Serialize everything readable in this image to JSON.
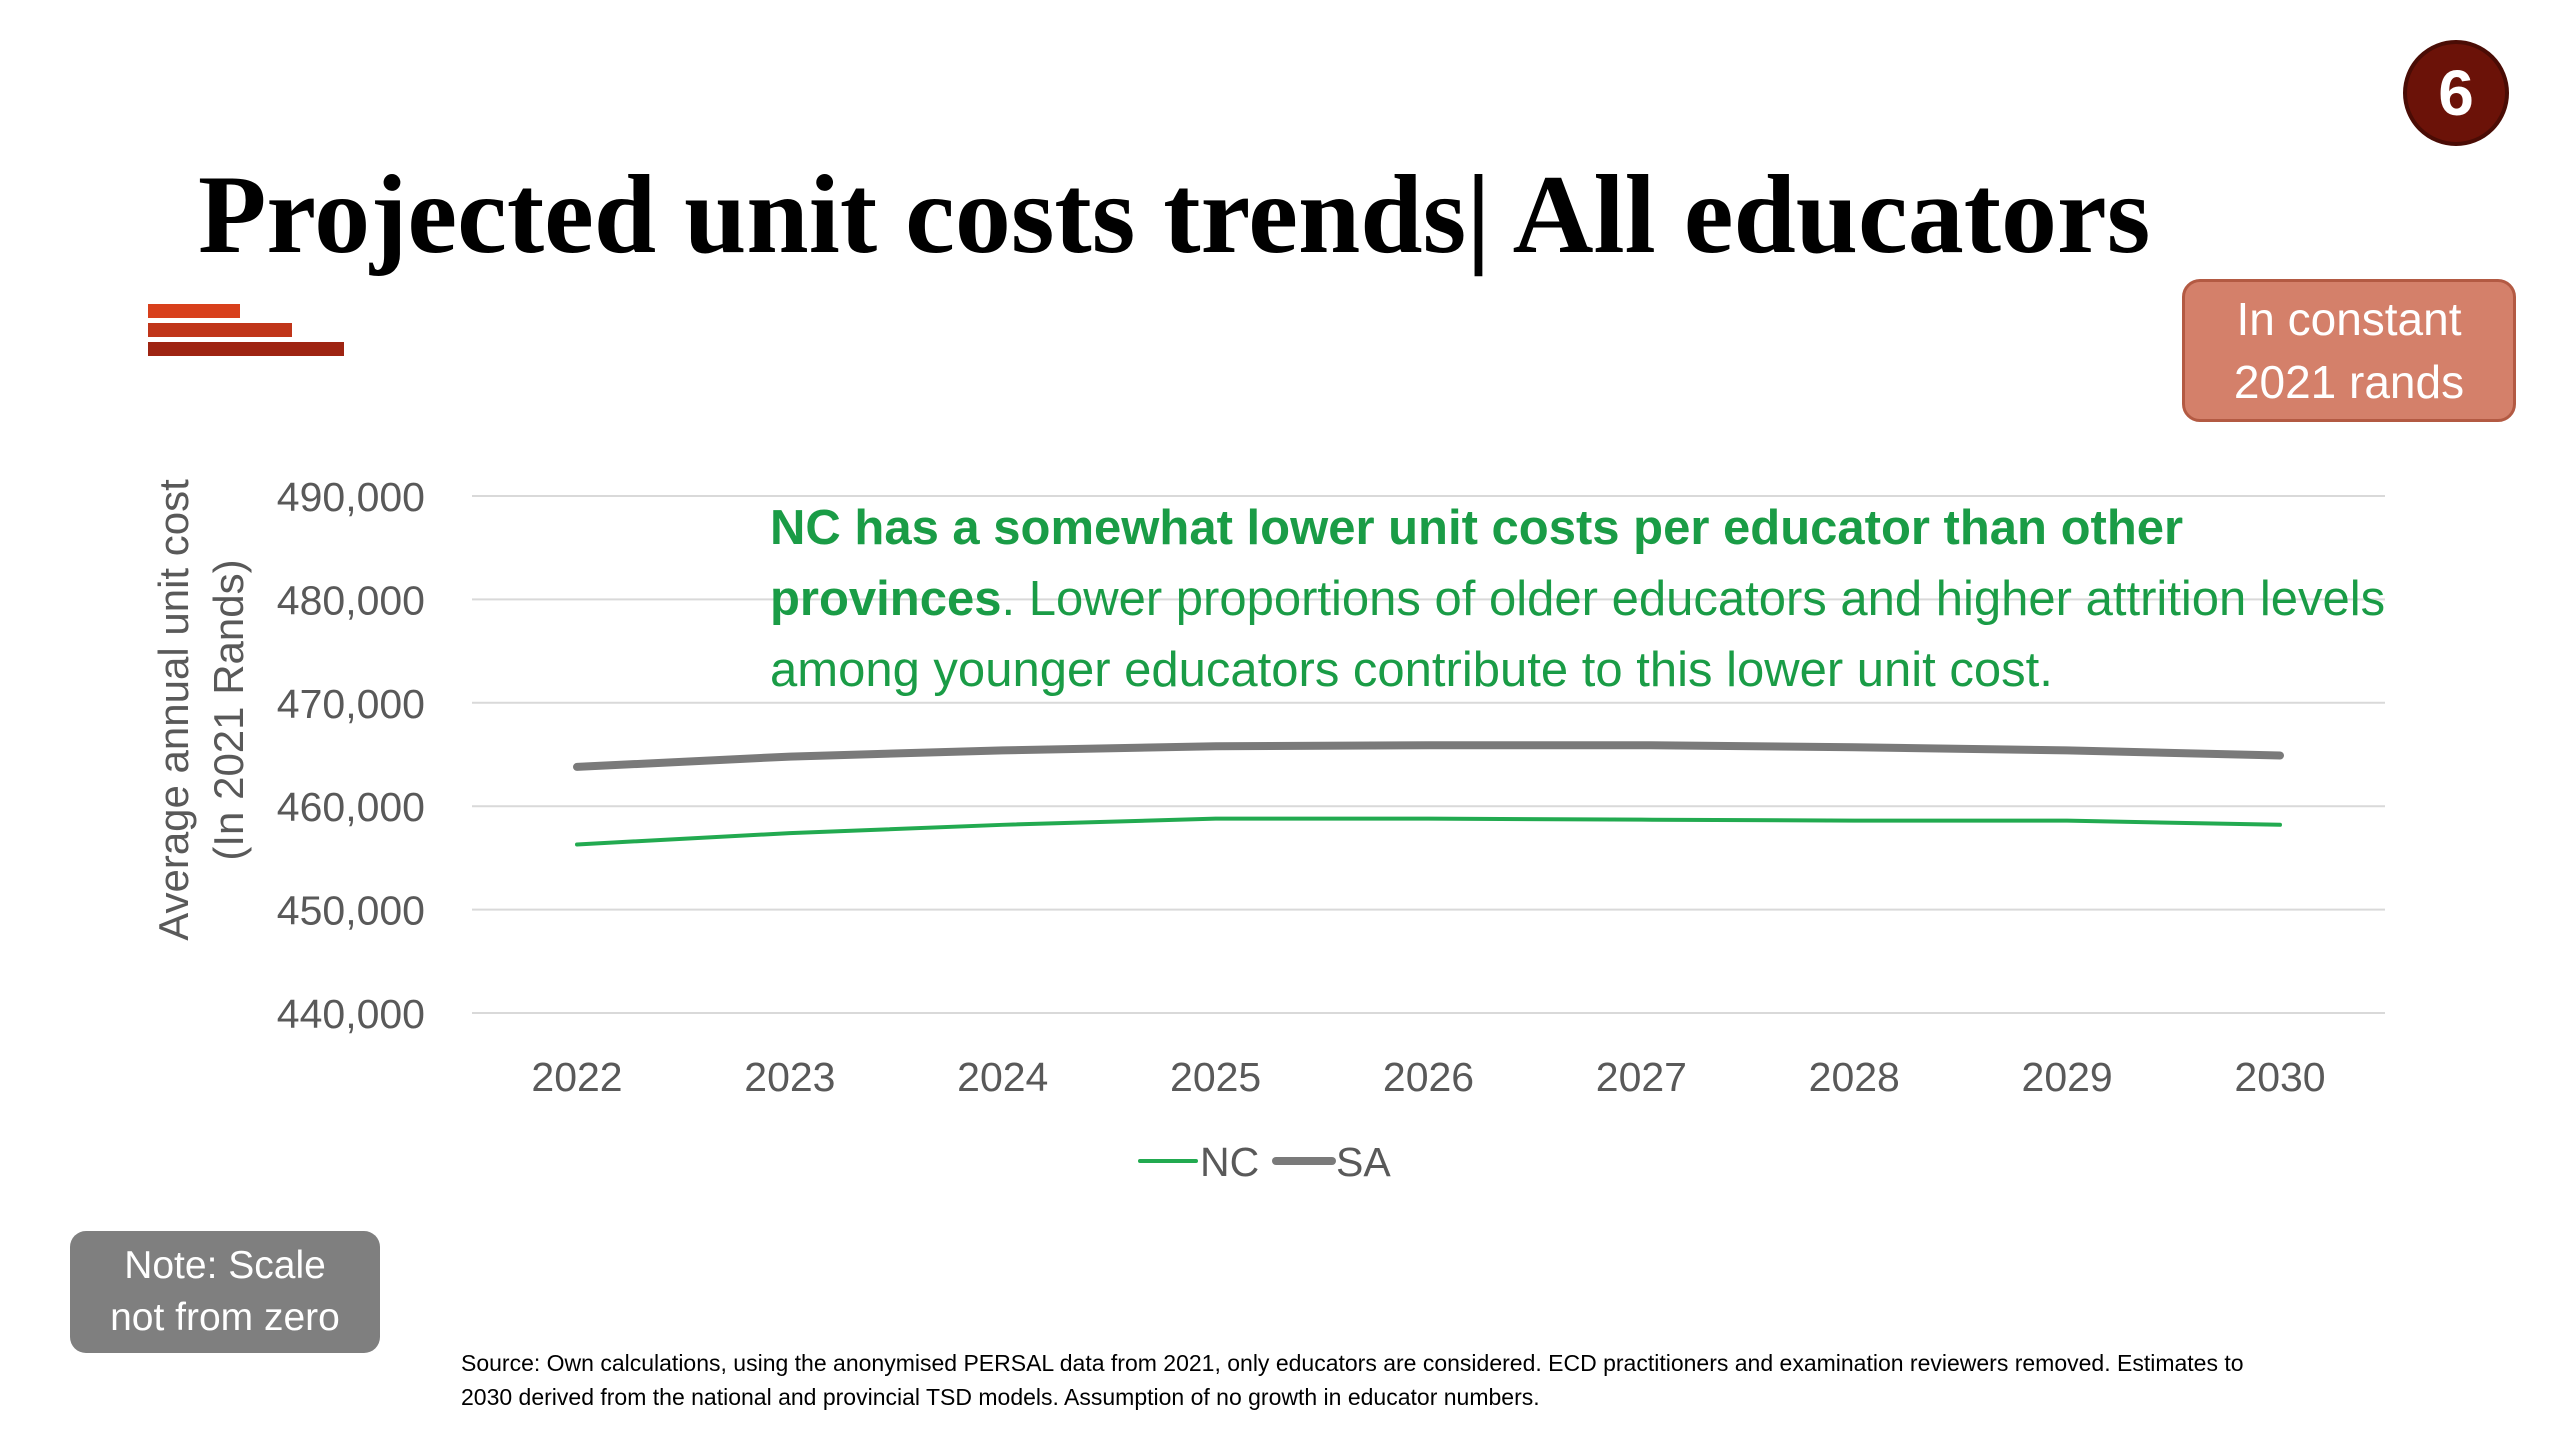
{
  "slide": {
    "number": "6",
    "title": "Projected unit costs trends| All educators",
    "badge_line1": "In constant",
    "badge_line2": "2021 rands",
    "note_line1": "Note: Scale",
    "note_line2": "not from zero",
    "source_line1": "Source: Own calculations, using the anonymised PERSAL data from 2021, only educators are considered. ECD practitioners and examination reviewers removed. Estimates to",
    "source_line2": "2030 derived from the national and provincial TSD models. Assumption of no growth in educator numbers.",
    "callout_bold": "NC has a somewhat lower unit costs per educator than other provinces",
    "callout_rest": ". Lower proportions of older educators and higher attrition levels among younger educators contribute to this lower unit cost.",
    "colors": {
      "accent_dark": "#6b1208",
      "badge": "#d4806a",
      "note": "#7f7f7f",
      "callout": "#1a9c46"
    }
  },
  "chart_data": {
    "type": "line",
    "title": "",
    "xlabel": "",
    "ylabel_line1": "Average annual unit cost",
    "ylabel_line2": "(In 2021 Rands)",
    "ylim": [
      440000,
      490000
    ],
    "y_ticks": [
      440000,
      450000,
      460000,
      470000,
      480000,
      490000
    ],
    "y_tick_labels": [
      "440,000",
      "450,000",
      "460,000",
      "470,000",
      "480,000",
      "490,000"
    ],
    "x": [
      "2022",
      "2023",
      "2024",
      "2025",
      "2026",
      "2027",
      "2028",
      "2029",
      "2030"
    ],
    "grid": true,
    "legend_position": "bottom",
    "series": [
      {
        "name": "NC",
        "color": "#22aa50",
        "values": [
          456300,
          457400,
          458200,
          458800,
          458800,
          458700,
          458600,
          458600,
          458200
        ]
      },
      {
        "name": "SA",
        "color": "#7a7a7a",
        "values": [
          463800,
          464800,
          465400,
          465800,
          465900,
          465900,
          465700,
          465400,
          464900
        ]
      }
    ]
  }
}
